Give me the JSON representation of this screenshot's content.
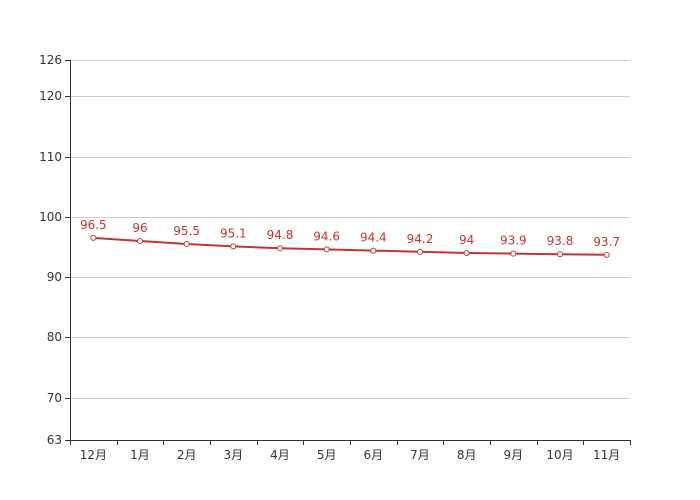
{
  "chart_data": {
    "type": "line",
    "categories": [
      "12月",
      "1月",
      "2月",
      "3月",
      "4月",
      "5月",
      "6月",
      "7月",
      "8月",
      "9月",
      "10月",
      "11月"
    ],
    "series": [
      {
        "values": [
          96.5,
          96,
          95.5,
          95.1,
          94.8,
          94.6,
          94.4,
          94.2,
          94,
          93.9,
          93.8,
          93.7
        ],
        "labels": [
          "96.5",
          "96",
          "95.5",
          "95.1",
          "94.8",
          "94.6",
          "94.4",
          "94.2",
          "94",
          "93.9",
          "93.8",
          "93.7"
        ]
      }
    ],
    "ylim": [
      63,
      126
    ],
    "yticks": [
      63,
      70,
      80,
      90,
      100,
      110,
      120,
      126
    ],
    "ytick_labels": [
      "63",
      "70",
      "80",
      "90",
      "100",
      "110",
      "120",
      "126"
    ],
    "grid": true,
    "colors": {
      "line": "#c23531",
      "label": "#c23531",
      "marker_fill": "#ffffff",
      "grid": "#cccccc",
      "axis": "#333333"
    }
  }
}
